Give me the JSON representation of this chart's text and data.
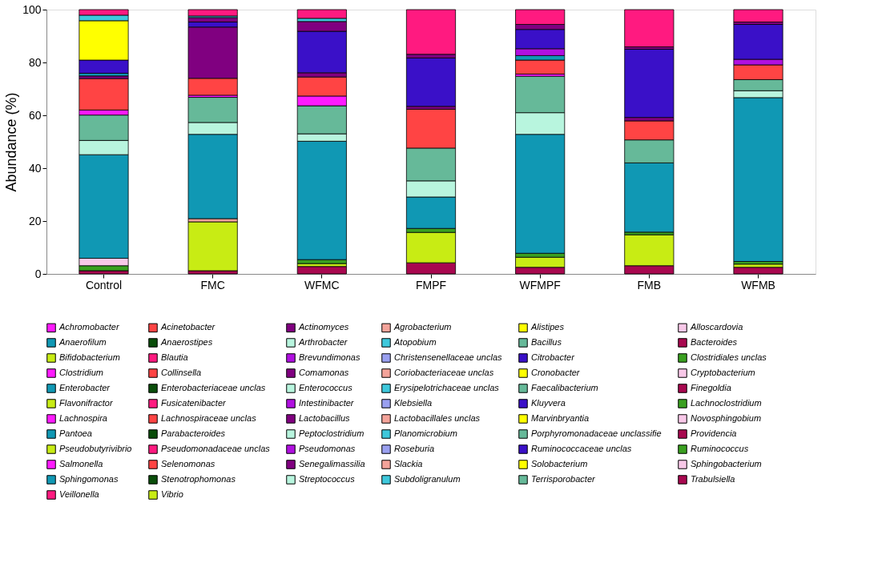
{
  "chart_data": {
    "type": "bar",
    "stacked": true,
    "ylabel": "Abundance (%)",
    "ylim": [
      0,
      100
    ],
    "yticks": [
      0,
      20,
      40,
      60,
      80,
      100
    ],
    "grid": false,
    "legend": "bottom",
    "categories": [
      "Control",
      "FMC",
      "WFMC",
      "FMPF",
      "WFMPF",
      "FMB",
      "WFMB"
    ],
    "series": [
      {
        "name": "Achromobacter",
        "color": "#ff1aff",
        "values": [
          null,
          null,
          null,
          null,
          null,
          null,
          null
        ]
      },
      {
        "name": "Acinetobacter",
        "color": "#ff4444",
        "values": [
          null,
          null,
          null,
          null,
          null,
          null,
          null
        ]
      },
      {
        "name": "Actinomyces",
        "color": "#800080",
        "values": [
          null,
          null,
          null,
          null,
          null,
          null,
          null
        ]
      },
      {
        "name": "Agrobacterium",
        "color": "#f4a39a",
        "values": [
          null,
          null,
          null,
          null,
          null,
          null,
          null
        ]
      },
      {
        "name": "Alistipes",
        "color": "#ffff00",
        "values": [
          null,
          null,
          null,
          null,
          null,
          null,
          null
        ]
      },
      {
        "name": "Alloscardovia",
        "color": "#f8c8e8",
        "values": [
          null,
          null,
          null,
          null,
          null,
          null,
          null
        ]
      },
      {
        "name": "Anaerofilum",
        "color": "#1098b4",
        "values": [
          null,
          null,
          null,
          null,
          null,
          null,
          null
        ]
      },
      {
        "name": "Anaerostipes",
        "color": "#0a4d0a",
        "values": [
          null,
          null,
          null,
          null,
          null,
          null,
          null
        ]
      },
      {
        "name": "Arthrobacter",
        "color": "#b8f5de",
        "values": [
          null,
          null,
          null,
          null,
          null,
          null,
          null
        ]
      },
      {
        "name": "Atopobium",
        "color": "#3ec8dc",
        "values": [
          null,
          null,
          null,
          null,
          null,
          null,
          null
        ]
      },
      {
        "name": "Bacillus",
        "color": "#66b999",
        "values": [
          null,
          null,
          null,
          null,
          null,
          null,
          null
        ]
      },
      {
        "name": "Bacteroides",
        "color": "#a8084f",
        "values": [
          1.2,
          1.2,
          2.8,
          4.2,
          2.5,
          3.1,
          2.5
        ]
      },
      {
        "name": "Bifidobacterium",
        "color": "#c8ec14",
        "values": [
          null,
          18.5,
          1.1,
          11.5,
          3.8,
          11.7,
          1.2
        ]
      },
      {
        "name": "Blautia",
        "color": "#ff1a80",
        "values": [
          null,
          null,
          null,
          null,
          null,
          null,
          null
        ]
      },
      {
        "name": "Brevundimonas",
        "color": "#b010e0",
        "values": [
          null,
          null,
          null,
          null,
          null,
          null,
          null
        ]
      },
      {
        "name": "Christensenellaceae unclas",
        "color": "#9aa0f0",
        "values": [
          null,
          null,
          null,
          null,
          null,
          null,
          null
        ]
      },
      {
        "name": "Citrobacter",
        "color": "#3a10c8",
        "values": [
          null,
          null,
          null,
          null,
          null,
          null,
          null
        ]
      },
      {
        "name": "Clostridiales unclas",
        "color": "#3aa020",
        "values": [
          1.9,
          null,
          1.5,
          1.5,
          1.5,
          1.0,
          1.0
        ]
      },
      {
        "name": "Clostridium",
        "color": "#ff1aff",
        "values": [
          null,
          null,
          null,
          null,
          null,
          null,
          null
        ]
      },
      {
        "name": "Collinsella",
        "color": "#ff4444",
        "values": [
          null,
          null,
          null,
          null,
          null,
          null,
          null
        ]
      },
      {
        "name": "Comamonas",
        "color": "#800080",
        "values": [
          null,
          null,
          null,
          null,
          null,
          null,
          null
        ]
      },
      {
        "name": "Coriobacteriaceae unclas",
        "color": "#f4a39a",
        "values": [
          null,
          1.2,
          null,
          null,
          null,
          null,
          null
        ]
      },
      {
        "name": "Cronobacter",
        "color": "#ffff00",
        "values": [
          null,
          null,
          null,
          null,
          null,
          null,
          null
        ]
      },
      {
        "name": "Cryptobacterium",
        "color": "#f8c8e8",
        "values": [
          2.8,
          null,
          null,
          null,
          null,
          null,
          null
        ]
      },
      {
        "name": "Enterobacter",
        "color": "#1098b4",
        "values": [
          39.2,
          31.9,
          44.8,
          11.9,
          45.0,
          26.2,
          62.0
        ]
      },
      {
        "name": "Enterobacteriaceae unclas",
        "color": "#0a4d0a",
        "values": [
          null,
          null,
          null,
          null,
          null,
          null,
          null
        ]
      },
      {
        "name": "Enterococcus",
        "color": "#b8f5de",
        "values": [
          5.4,
          4.5,
          2.8,
          6.1,
          8.2,
          null,
          2.6
        ]
      },
      {
        "name": "Erysipelotrichaceae unclas",
        "color": "#3ec8dc",
        "values": [
          null,
          null,
          null,
          null,
          null,
          null,
          null
        ]
      },
      {
        "name": "Faecalibacterium",
        "color": "#66b999",
        "values": [
          9.6,
          9.5,
          10.6,
          12.4,
          13.8,
          8.7,
          4.2
        ]
      },
      {
        "name": "Finegoldia",
        "color": "#a8084f",
        "values": [
          null,
          null,
          null,
          null,
          null,
          null,
          null
        ]
      },
      {
        "name": "Flavonifractor",
        "color": "#c8ec14",
        "values": [
          null,
          null,
          null,
          null,
          null,
          null,
          null
        ]
      },
      {
        "name": "Fusicatenibacter",
        "color": "#ff1a80",
        "values": [
          null,
          null,
          null,
          null,
          null,
          null,
          null
        ]
      },
      {
        "name": "Intestinibacter",
        "color": "#b010e0",
        "values": [
          null,
          null,
          null,
          null,
          null,
          null,
          null
        ]
      },
      {
        "name": "Klebsiella",
        "color": "#9aa0f0",
        "values": [
          null,
          null,
          null,
          null,
          null,
          null,
          null
        ]
      },
      {
        "name": "Kluyvera",
        "color": "#3a10c8",
        "values": [
          null,
          null,
          null,
          null,
          null,
          null,
          null
        ]
      },
      {
        "name": "Lachnoclostridium",
        "color": "#3aa020",
        "values": [
          null,
          null,
          null,
          null,
          null,
          null,
          null
        ]
      },
      {
        "name": "Lachnospira",
        "color": "#ff1aff",
        "values": [
          1.9,
          0.8,
          3.7,
          null,
          0.8,
          null,
          null
        ]
      },
      {
        "name": "Lachnospiraceae unclas",
        "color": "#ff4444",
        "values": [
          11.9,
          6.4,
          7.2,
          14.7,
          5.3,
          7.2,
          5.6
        ]
      },
      {
        "name": "Lactobacillus",
        "color": "#800080",
        "values": [
          1.0,
          19.4,
          1.6,
          1.1,
          null,
          1.3,
          null
        ]
      },
      {
        "name": "Lactobacillales unclas",
        "color": "#f4a39a",
        "values": [
          null,
          null,
          null,
          null,
          null,
          null,
          null
        ]
      },
      {
        "name": "Marvinbryantia",
        "color": "#ffff00",
        "values": [
          null,
          null,
          null,
          null,
          null,
          null,
          null
        ]
      },
      {
        "name": "Novosphingobium",
        "color": "#f8c8e8",
        "values": [
          null,
          null,
          null,
          null,
          null,
          null,
          null
        ]
      },
      {
        "name": "Pantoea",
        "color": "#1098b4",
        "values": [
          1.0,
          null,
          null,
          null,
          1.7,
          null,
          null
        ]
      },
      {
        "name": "Parabacteroides",
        "color": "#0a4d0a",
        "values": [
          null,
          null,
          null,
          null,
          null,
          null,
          null
        ]
      },
      {
        "name": "Peptoclostridium",
        "color": "#b8f5de",
        "values": [
          null,
          null,
          null,
          null,
          null,
          null,
          null
        ]
      },
      {
        "name": "Planomicrobium",
        "color": "#3ec8dc",
        "values": [
          null,
          null,
          null,
          null,
          null,
          null,
          null
        ]
      },
      {
        "name": "Porphyromonadaceae unclassifie",
        "color": "#66b999",
        "values": [
          null,
          null,
          null,
          null,
          null,
          null,
          null
        ]
      },
      {
        "name": "Providencia",
        "color": "#a8084f",
        "values": [
          null,
          null,
          null,
          null,
          null,
          null,
          null
        ]
      },
      {
        "name": "Pseudobutyrivibrio",
        "color": "#c8ec14",
        "values": [
          null,
          null,
          null,
          null,
          null,
          null,
          null
        ]
      },
      {
        "name": "Pseudomonadaceae unclas",
        "color": "#ff1a80",
        "values": [
          null,
          null,
          null,
          null,
          null,
          null,
          null
        ]
      },
      {
        "name": "Pseudomonas",
        "color": "#b010e0",
        "values": [
          null,
          null,
          null,
          null,
          2.6,
          null,
          2.1
        ]
      },
      {
        "name": "Roseburia",
        "color": "#9aa0f0",
        "values": [
          null,
          null,
          null,
          null,
          null,
          null,
          null
        ]
      },
      {
        "name": "Ruminococcaceae unclas",
        "color": "#3a10c8",
        "values": [
          5.0,
          1.9,
          15.7,
          18.3,
          7.3,
          25.8,
          13.2
        ]
      },
      {
        "name": "Ruminococcus",
        "color": "#3aa020",
        "values": [
          null,
          null,
          null,
          null,
          null,
          null,
          null
        ]
      },
      {
        "name": "Salmonella",
        "color": "#ff1aff",
        "values": [
          null,
          null,
          null,
          null,
          null,
          null,
          null
        ]
      },
      {
        "name": "Selenomonas",
        "color": "#ff4444",
        "values": [
          null,
          null,
          null,
          null,
          null,
          null,
          null
        ]
      },
      {
        "name": "Senegalimassilia",
        "color": "#800080",
        "values": [
          null,
          1.7,
          3.7,
          1.4,
          1.9,
          0.9,
          0.9
        ]
      },
      {
        "name": "Slackia",
        "color": "#f4a39a",
        "values": [
          null,
          null,
          null,
          null,
          null,
          null,
          null
        ]
      },
      {
        "name": "Solobacterium",
        "color": "#ffff00",
        "values": [
          14.9,
          null,
          null,
          null,
          null,
          null,
          null
        ]
      },
      {
        "name": "Sphingobacterium",
        "color": "#f8c8e8",
        "values": [
          null,
          null,
          null,
          null,
          null,
          null,
          null
        ]
      },
      {
        "name": "Sphingomonas",
        "color": "#1098b4",
        "values": [
          null,
          null,
          null,
          null,
          null,
          null,
          null
        ]
      },
      {
        "name": "Stenotrophomonas",
        "color": "#0a4d0a",
        "values": [
          null,
          null,
          null,
          null,
          null,
          null,
          null
        ]
      },
      {
        "name": "Streptococcus",
        "color": "#b8f5de",
        "values": [
          null,
          null,
          null,
          null,
          null,
          null,
          null
        ]
      },
      {
        "name": "Subdoligranulum",
        "color": "#3ec8dc",
        "values": [
          2.1,
          0.6,
          1.2,
          null,
          null,
          null,
          null
        ]
      },
      {
        "name": "Terrisporobacter",
        "color": "#66b999",
        "values": [
          null,
          null,
          null,
          null,
          null,
          null,
          null
        ]
      },
      {
        "name": "Trabulsiella",
        "color": "#a8084f",
        "values": [
          null,
          null,
          null,
          null,
          null,
          null,
          null
        ]
      },
      {
        "name": "Veillonella",
        "color": "#ff1a80",
        "values": [
          2.1,
          2.4,
          3.3,
          16.9,
          5.6,
          14.1,
          4.7
        ]
      },
      {
        "name": "Vibrio",
        "color": "#c8ec14",
        "values": [
          null,
          null,
          null,
          null,
          null,
          null,
          null
        ]
      }
    ]
  }
}
